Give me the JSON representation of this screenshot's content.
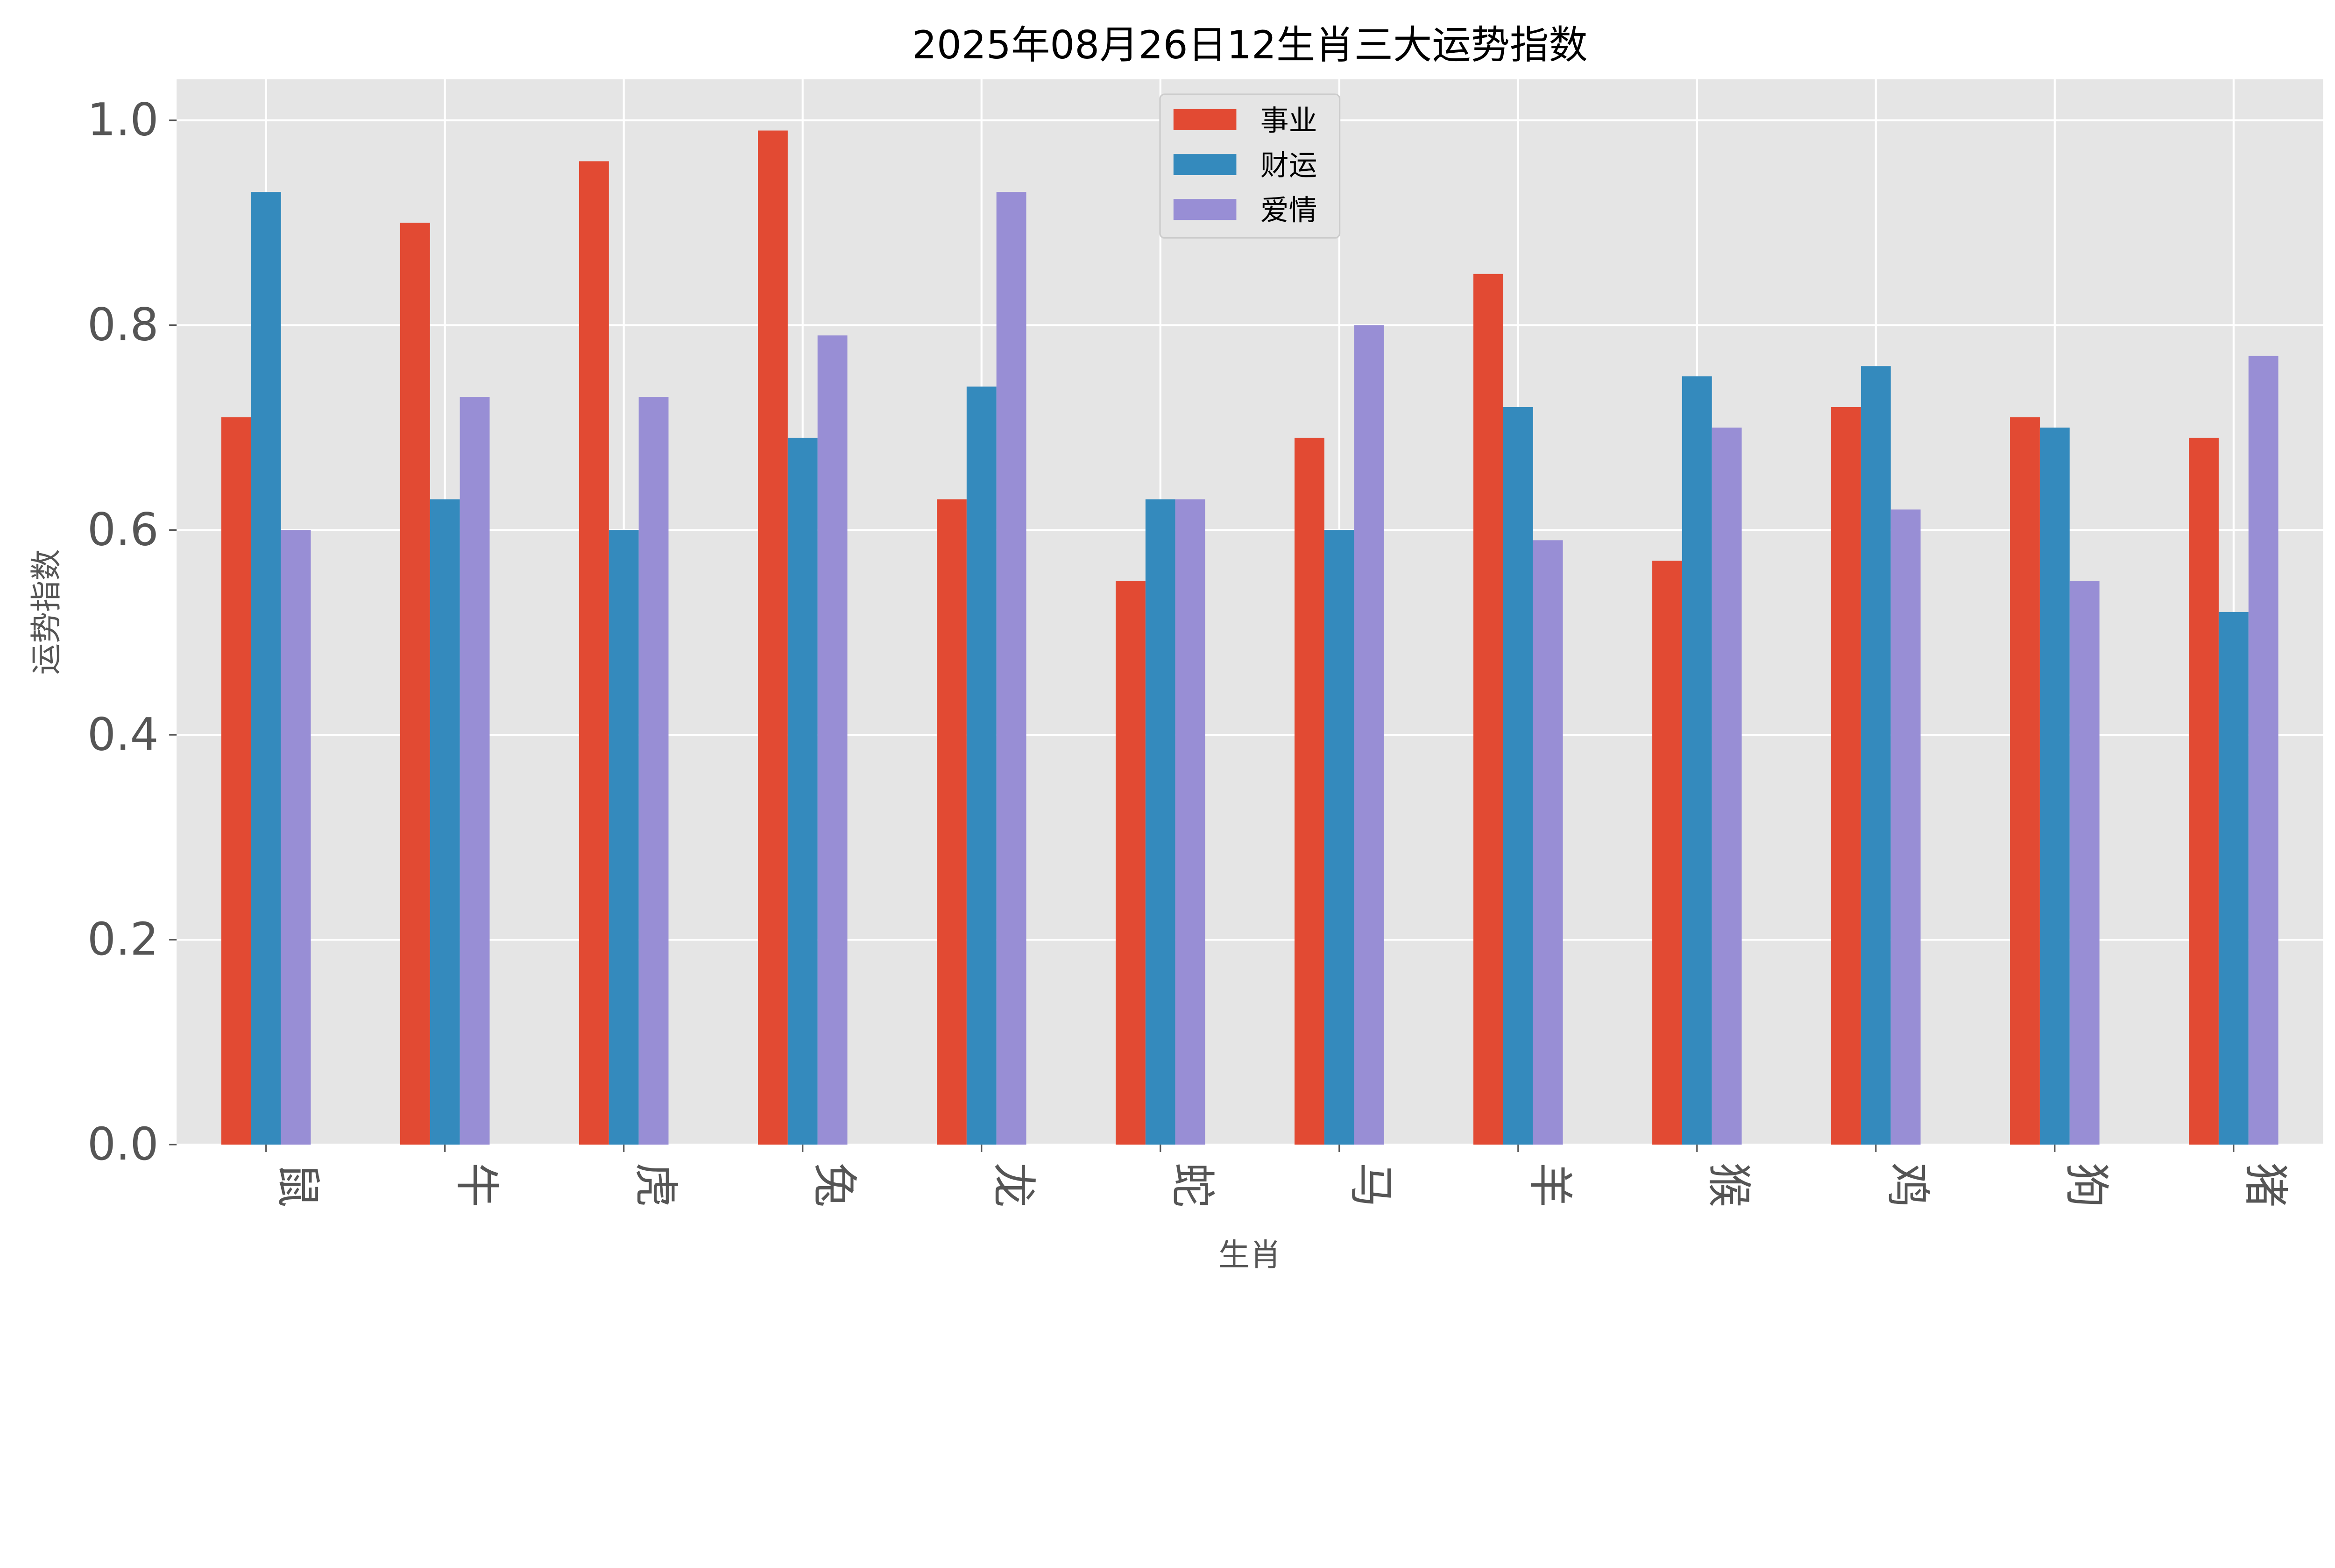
{
  "chart_data": {
    "type": "bar",
    "title": "2025年08月26日12生肖三大运势指数",
    "xlabel": "生肖",
    "ylabel": "运势指数",
    "categories": [
      "鼠",
      "牛",
      "虎",
      "兔",
      "龙",
      "蛇",
      "马",
      "羊",
      "猴",
      "鸡",
      "狗",
      "猪"
    ],
    "series": [
      {
        "name": "事业",
        "color": "#E24A33",
        "values": [
          0.71,
          0.9,
          0.96,
          0.99,
          0.63,
          0.55,
          0.69,
          0.85,
          0.57,
          0.72,
          0.71,
          0.69
        ]
      },
      {
        "name": "财运",
        "color": "#348ABD",
        "values": [
          0.93,
          0.63,
          0.6,
          0.69,
          0.74,
          0.63,
          0.6,
          0.72,
          0.75,
          0.76,
          0.7,
          0.52
        ]
      },
      {
        "name": "爱情",
        "color": "#988ED5",
        "values": [
          0.6,
          0.73,
          0.73,
          0.79,
          0.93,
          0.63,
          0.8,
          0.59,
          0.7,
          0.62,
          0.55,
          0.77
        ]
      }
    ],
    "ylim": [
      0,
      1.04
    ],
    "yticks": [
      "0.0",
      "0.2",
      "0.4",
      "0.6",
      "0.8",
      "1.0"
    ],
    "grid": true,
    "legend_position": "upper-center",
    "background": "#E5E5E5"
  }
}
